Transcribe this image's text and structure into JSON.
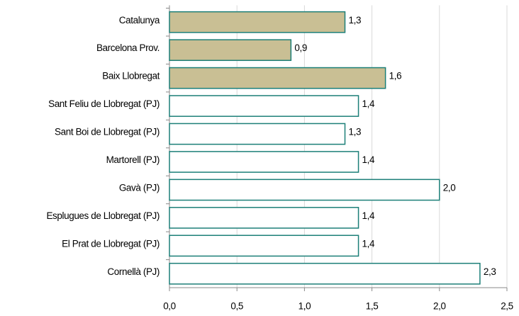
{
  "chart_data": {
    "type": "barh",
    "categories": [
      "Catalunya",
      "Barcelona Prov.",
      "Baix Llobregat",
      "Sant Feliu de Llobregat (PJ)",
      "Sant Boi de Llobregat (PJ)",
      "Martorell (PJ)",
      "Gavà (PJ)",
      "Esplugues de Llobregat (PJ)",
      "El Prat de Llobregat (PJ)",
      "Cornellà (PJ)"
    ],
    "values": [
      1.3,
      0.9,
      1.6,
      1.4,
      1.3,
      1.4,
      2.0,
      1.4,
      1.4,
      2.3
    ],
    "value_labels": [
      "1,3",
      "0,9",
      "1,6",
      "1,4",
      "1,3",
      "1,4",
      "2,0",
      "1,4",
      "1,4",
      "2,3"
    ],
    "colors": [
      "#c9bf94",
      "#c9bf94",
      "#c9bf94",
      "#ffffff",
      "#ffffff",
      "#ffffff",
      "#ffffff",
      "#ffffff",
      "#ffffff",
      "#ffffff"
    ],
    "edge_color": "#1c7f78",
    "xlim": [
      0,
      2.5
    ],
    "xticks": [
      {
        "value": 0,
        "label": "0,0"
      },
      {
        "value": 0.5,
        "label": "0,5"
      },
      {
        "value": 1,
        "label": "1,0"
      },
      {
        "value": 1.5,
        "label": "1,5"
      },
      {
        "value": 2,
        "label": "2,0"
      },
      {
        "value": 2.5,
        "label": "2,5"
      }
    ],
    "grid": true
  }
}
